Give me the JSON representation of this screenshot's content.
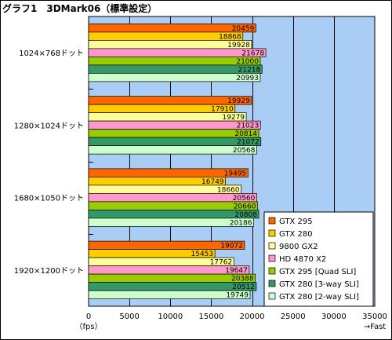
{
  "title": "グラフ1　3DMark06（標準設定）",
  "colors": {
    "plot_bg": "#a9cdf5",
    "grid": "#000000",
    "bar_border": "#000000"
  },
  "chart_data": {
    "type": "bar",
    "orientation": "horizontal",
    "title": "グラフ1　3DMark06（標準設定）",
    "categories": [
      "1024×768ドット",
      "1280×1024ドット",
      "1680×1050ドット",
      "1920×1200ドット"
    ],
    "series": [
      {
        "name": "GTX 295",
        "color": "#ff6600",
        "values": [
          20459,
          19929,
          19495,
          19072
        ]
      },
      {
        "name": "GTX 280",
        "color": "#ffcc00",
        "values": [
          18868,
          17910,
          16749,
          15453
        ]
      },
      {
        "name": "9800 GX2",
        "color": "#ffff99",
        "values": [
          19928,
          19279,
          18660,
          17762
        ]
      },
      {
        "name": "HD 4870 X2",
        "color": "#ff99cc",
        "values": [
          21678,
          21023,
          20560,
          19647
        ]
      },
      {
        "name": "GTX 295 [Quad SLI]",
        "color": "#99cc00",
        "values": [
          21000,
          20814,
          20660,
          20388
        ]
      },
      {
        "name": "GTX 280 [3-way SLI]",
        "color": "#339966",
        "values": [
          21218,
          21072,
          20808,
          20512
        ]
      },
      {
        "name": "GTX 280 [2-way SLI]",
        "color": "#ccffcc",
        "values": [
          20993,
          20568,
          20186,
          19749
        ]
      }
    ],
    "xlim": [
      0,
      35000
    ],
    "xticks": [
      0,
      5000,
      10000,
      15000,
      20000,
      25000,
      30000,
      35000
    ],
    "xlabel_left": "（fps）",
    "xlabel_right": "→Fast",
    "grid": true,
    "legend_position": "bottom-right"
  }
}
